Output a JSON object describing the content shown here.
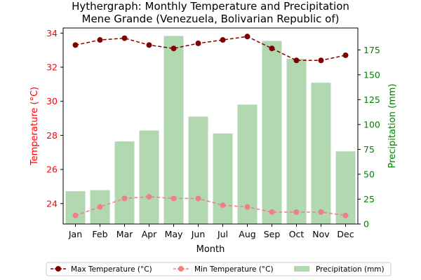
{
  "chart_data": {
    "type": "bar",
    "title_line1": "Hythergraph: Monthly Temperature and Precipitation",
    "title_line2": "Mene Grande (Venezuela, Bolivarian Republic of)",
    "xlabel": "Month",
    "ylabel_left": "Temperature (°C)",
    "ylabel_right": "Precipitation (mm)",
    "categories": [
      "Jan",
      "Feb",
      "Mar",
      "Apr",
      "May",
      "Jun",
      "Jul",
      "Aug",
      "Sep",
      "Oct",
      "Nov",
      "Dec"
    ],
    "ylim_left": [
      22.8,
      34.3
    ],
    "yticks_left": [
      24,
      26,
      28,
      30,
      32,
      34
    ],
    "ylim_right": [
      0,
      197
    ],
    "yticks_right": [
      0,
      25,
      50,
      75,
      100,
      125,
      150,
      175
    ],
    "series": [
      {
        "name": "Max Temperature (°C)",
        "kind": "line",
        "axis": "left",
        "color": "#800000",
        "values": [
          33.3,
          33.6,
          33.7,
          33.3,
          33.1,
          33.4,
          33.6,
          33.8,
          33.1,
          32.4,
          32.4,
          32.7
        ]
      },
      {
        "name": "Min Temperature (°C)",
        "kind": "line",
        "axis": "left",
        "color": "#f08080",
        "values": [
          23.3,
          23.8,
          24.3,
          24.4,
          24.3,
          24.3,
          23.9,
          23.8,
          23.5,
          23.5,
          23.5,
          23.3
        ]
      },
      {
        "name": "Precipitation (mm)",
        "kind": "bar",
        "axis": "right",
        "color": "#b2d8b2",
        "values": [
          33,
          34,
          83,
          94,
          189,
          108,
          91,
          120,
          184,
          166,
          142,
          73
        ]
      }
    ],
    "left_axis_color": "#ff0000",
    "right_axis_color": "#008000",
    "legend_position": "bottom"
  }
}
